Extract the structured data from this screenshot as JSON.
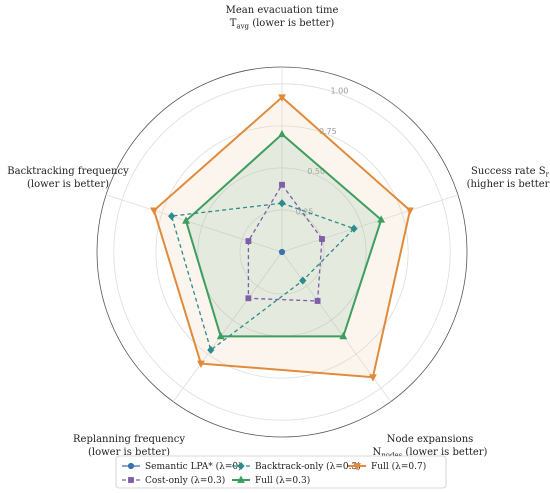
{
  "chart_data": {
    "type": "radar",
    "axes": [
      {
        "lines": [
          "Mean evacuation time",
          "T_avg (lower is better)"
        ]
      },
      {
        "lines": [
          "Success rate S_r",
          "(higher is better)"
        ]
      },
      {
        "lines": [
          "Node expansions",
          "N_nodes (lower is better)"
        ]
      },
      {
        "lines": [
          "Replanning frequency",
          "(lower is better)"
        ]
      },
      {
        "lines": [
          "Backtracking frequency",
          "(lower is better)"
        ]
      }
    ],
    "radial_ticks": [
      "0.25",
      "0.50",
      "0.75",
      "1.00"
    ],
    "radial_tick_values": [
      0.25,
      0.5,
      0.75,
      1.0
    ],
    "rmax": 1.1,
    "grid": true,
    "legend_position": "bottom",
    "series": [
      {
        "name": "Semantic LPA* (λ=0)",
        "values": [
          0.0,
          0.0,
          0.0,
          0.0,
          0.0
        ],
        "color": "#3a72b0",
        "dash": "",
        "marker": "circle",
        "fill": false
      },
      {
        "name": "Cost-only (λ=0.3)",
        "values": [
          0.4,
          0.25,
          0.36,
          0.34,
          0.21
        ],
        "color": "#7e5ea8",
        "dash": "4,3",
        "marker": "square",
        "fill": false
      },
      {
        "name": "Backtrack-only (λ=0.3)",
        "values": [
          0.29,
          0.45,
          0.21,
          0.72,
          0.69
        ],
        "color": "#2e8b8b",
        "dash": "4,3",
        "marker": "diamond",
        "fill": false
      },
      {
        "name": "Full (λ=0.3)",
        "values": [
          0.7,
          0.62,
          0.62,
          0.62,
          0.6
        ],
        "color": "#3d9e5f",
        "dash": "",
        "marker": "triangle-up",
        "fill": true,
        "fill_color": "#3d9e5f"
      },
      {
        "name": "Full (λ=0.7)",
        "values": [
          0.92,
          0.8,
          0.92,
          0.82,
          0.8
        ],
        "color": "#e08a3a",
        "dash": "",
        "marker": "triangle-down",
        "fill": true,
        "fill_color": "#f3d8bd"
      }
    ]
  }
}
